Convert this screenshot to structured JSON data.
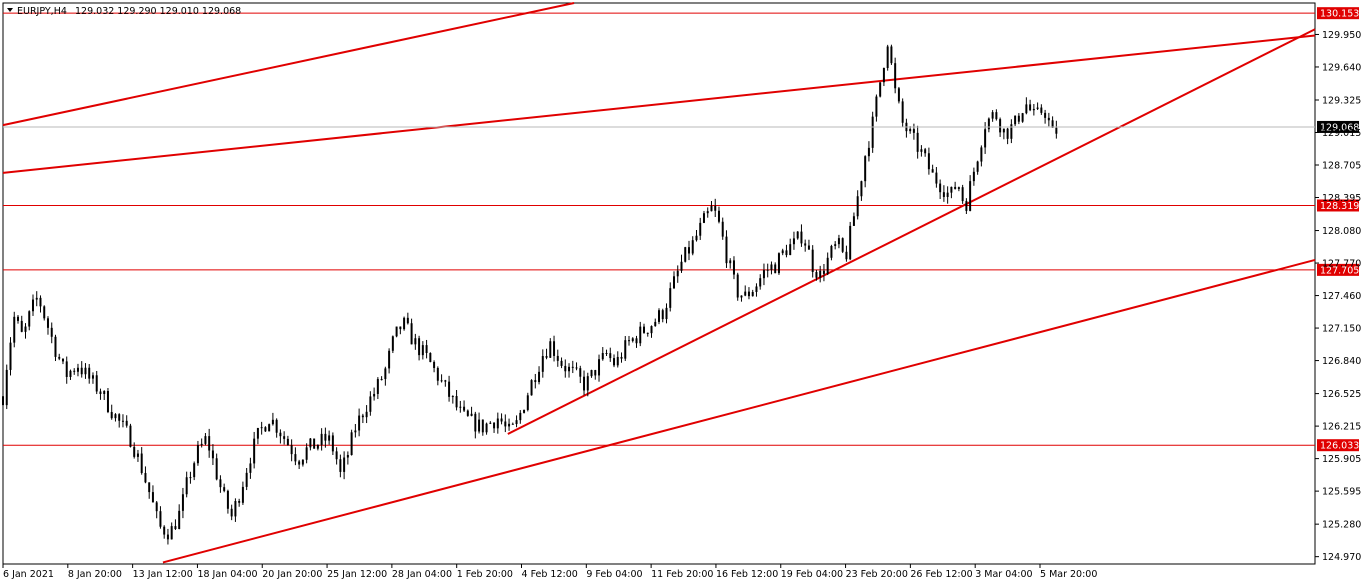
{
  "chart_data": {
    "type": "candlestick",
    "header": {
      "symbol": "EURJPY,H4",
      "values": "129.032 129.290 129.010 129.068"
    },
    "y_axis": {
      "range": [
        124.9,
        130.25
      ],
      "ticks": [
        "129.950",
        "129.640",
        "129.325",
        "129.015",
        "128.705",
        "128.395",
        "128.080",
        "127.770",
        "127.460",
        "127.150",
        "126.840",
        "126.525",
        "126.215",
        "125.905",
        "125.595",
        "125.280",
        "124.970"
      ]
    },
    "x_axis": {
      "ticks": [
        "6 Jan 2021",
        "8 Jan 20:00",
        "13 Jan 12:00",
        "18 Jan 04:00",
        "20 Jan 20:00",
        "25 Jan 12:00",
        "28 Jan 04:00",
        "1 Feb 20:00",
        "4 Feb 12:00",
        "9 Feb 04:00",
        "11 Feb 20:00",
        "16 Feb 12:00",
        "19 Feb 04:00",
        "23 Feb 20:00",
        "26 Feb 12:00",
        "3 Mar 04:00",
        "5 Mar 20:00"
      ]
    },
    "current_price": "129.068",
    "levels": [
      {
        "value": "130.153",
        "color": "#e00000"
      },
      {
        "value": "128.319",
        "color": "#e00000"
      },
      {
        "value": "127.705",
        "color": "#e00000"
      },
      {
        "value": "126.033",
        "color": "#e00000"
      }
    ],
    "path_points": [
      [
        126.5,
        0.0
      ],
      [
        126.9,
        0.4
      ],
      [
        127.25,
        0.9
      ],
      [
        127.05,
        1.6
      ],
      [
        127.3,
        2.2
      ],
      [
        127.45,
        2.8
      ],
      [
        127.2,
        3.5
      ],
      [
        126.95,
        4.2
      ],
      [
        126.7,
        5.0
      ],
      [
        126.8,
        6.0
      ],
      [
        126.65,
        7.0
      ],
      [
        126.55,
        7.8
      ],
      [
        126.4,
        8.5
      ],
      [
        126.25,
        9.3
      ],
      [
        126.1,
        10.2
      ],
      [
        125.85,
        11.0
      ],
      [
        125.55,
        11.8
      ],
      [
        125.25,
        12.5
      ],
      [
        125.2,
        13.4
      ],
      [
        125.4,
        14.2
      ],
      [
        125.7,
        14.8
      ],
      [
        125.95,
        15.5
      ],
      [
        126.1,
        16.3
      ],
      [
        125.8,
        17.0
      ],
      [
        125.55,
        17.6
      ],
      [
        125.35,
        18.3
      ],
      [
        125.6,
        19.0
      ],
      [
        125.9,
        19.7
      ],
      [
        126.15,
        20.5
      ],
      [
        126.3,
        21.3
      ],
      [
        126.2,
        22.0
      ],
      [
        126.05,
        22.8
      ],
      [
        125.9,
        23.6
      ],
      [
        126.0,
        24.4
      ],
      [
        126.05,
        25.2
      ],
      [
        126.1,
        26.0
      ],
      [
        125.95,
        26.6
      ],
      [
        125.75,
        27.0
      ],
      [
        125.95,
        27.6
      ],
      [
        126.2,
        28.2
      ],
      [
        126.4,
        29.0
      ],
      [
        126.55,
        29.8
      ],
      [
        126.75,
        30.6
      ],
      [
        127.05,
        31.3
      ],
      [
        127.2,
        32.0
      ],
      [
        127.0,
        33.0
      ],
      [
        126.85,
        34.0
      ],
      [
        126.65,
        35.0
      ],
      [
        126.45,
        36.0
      ],
      [
        126.3,
        36.8
      ],
      [
        126.25,
        37.6
      ],
      [
        126.2,
        38.3
      ],
      [
        126.25,
        39.0
      ],
      [
        126.3,
        39.7
      ],
      [
        126.15,
        40.4
      ],
      [
        126.2,
        41.0
      ],
      [
        126.6,
        42.2
      ],
      [
        126.9,
        43.2
      ],
      [
        127.0,
        43.8
      ],
      [
        126.8,
        44.8
      ],
      [
        126.7,
        45.8
      ],
      [
        126.6,
        46.6
      ],
      [
        126.75,
        47.4
      ],
      [
        126.9,
        48.3
      ],
      [
        126.8,
        49.0
      ],
      [
        127.0,
        50.0
      ],
      [
        127.1,
        51.0
      ],
      [
        127.2,
        52.0
      ],
      [
        127.3,
        52.8
      ],
      [
        127.55,
        53.6
      ],
      [
        127.8,
        54.4
      ],
      [
        127.95,
        55.2
      ],
      [
        128.15,
        56.0
      ],
      [
        128.3,
        56.8
      ],
      [
        128.1,
        57.4
      ],
      [
        127.8,
        58.0
      ],
      [
        127.5,
        58.7
      ],
      [
        127.45,
        59.4
      ],
      [
        127.55,
        60.2
      ],
      [
        127.7,
        61.0
      ],
      [
        127.75,
        61.8
      ],
      [
        127.9,
        62.6
      ],
      [
        127.95,
        63.3
      ],
      [
        128.05,
        64.0
      ],
      [
        127.75,
        64.8
      ],
      [
        127.65,
        65.4
      ],
      [
        127.85,
        66.2
      ],
      [
        127.95,
        66.8
      ],
      [
        127.8,
        67.4
      ],
      [
        128.4,
        68.4
      ],
      [
        128.8,
        69.0
      ],
      [
        129.1,
        69.6
      ],
      [
        129.5,
        70.2
      ],
      [
        129.9,
        70.8
      ],
      [
        129.4,
        71.4
      ],
      [
        129.1,
        72.0
      ],
      [
        128.95,
        72.8
      ],
      [
        128.8,
        73.6
      ],
      [
        128.6,
        74.4
      ],
      [
        128.5,
        75.2
      ],
      [
        128.4,
        75.8
      ],
      [
        128.55,
        76.4
      ],
      [
        128.3,
        77.0
      ],
      [
        128.7,
        77.8
      ],
      [
        129.1,
        78.6
      ],
      [
        129.2,
        79.4
      ],
      [
        129.0,
        80.2
      ],
      [
        129.1,
        81.0
      ],
      [
        129.3,
        81.8
      ],
      [
        129.15,
        82.6
      ],
      [
        129.25,
        83.3
      ],
      [
        129.0,
        84.0
      ],
      [
        129.05,
        84.5
      ]
    ],
    "trendlines": [
      {
        "x1": 0.0,
        "y1": 129.085,
        "x2": 45.7,
        "y2": 130.25
      },
      {
        "x1": 0.0,
        "y1": 128.63,
        "x2": 105.0,
        "y2": 129.94
      },
      {
        "x1": 40.4,
        "y1": 126.14,
        "x2": 105.0,
        "y2": 130.0
      },
      {
        "x1": 12.8,
        "y1": 124.915,
        "x2": 105.0,
        "y2": 127.8
      }
    ]
  }
}
